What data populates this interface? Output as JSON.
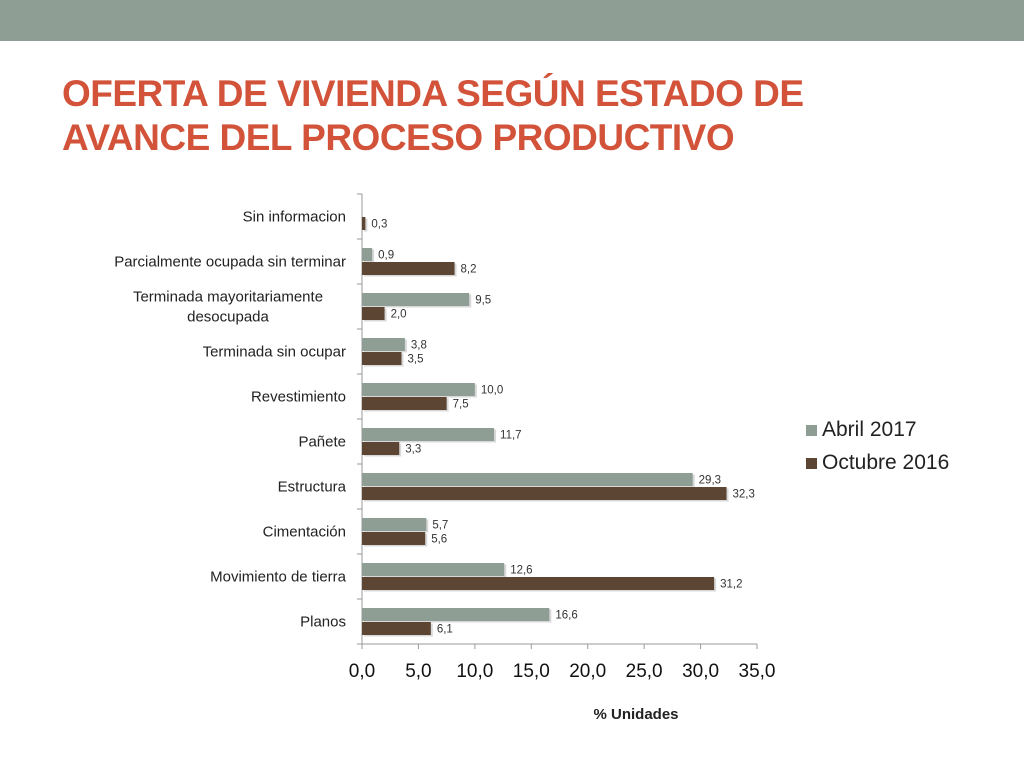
{
  "slide": {
    "title_line1": "OFERTA DE VIVIENDA SEGÚN ESTADO DE",
    "title_line2": "AVANCE DEL PROCESO PRODUCTIVO",
    "band_color": "#8e9e95",
    "title_color": "#d2533a"
  },
  "chart_data": {
    "type": "bar",
    "orientation": "horizontal",
    "title": "",
    "categories": [
      [
        "Sin informacion"
      ],
      [
        "Parcialmente ocupada sin terminar"
      ],
      [
        "Terminada mayoritariamente",
        "desocupada"
      ],
      [
        "Terminada sin ocupar"
      ],
      [
        "Revestimiento"
      ],
      [
        "Pañete"
      ],
      [
        "Estructura"
      ],
      [
        "Cimentación"
      ],
      [
        "Movimiento de tierra"
      ],
      [
        "Planos"
      ]
    ],
    "series": [
      {
        "name": "Abril 2017",
        "color": "#8e9e95",
        "values": [
          null,
          0.9,
          9.5,
          3.8,
          10.0,
          11.7,
          29.3,
          5.7,
          12.6,
          16.6
        ],
        "labels": [
          "",
          "0,9",
          "9,5",
          "3,8",
          "10,0",
          "11,7",
          "29,3",
          "5,7",
          "12,6",
          "16,6"
        ]
      },
      {
        "name": "Octubre 2016",
        "color": "#5c4533",
        "values": [
          0.3,
          8.2,
          2.0,
          3.5,
          7.5,
          3.3,
          32.3,
          5.6,
          31.2,
          6.1
        ],
        "labels": [
          "0,3",
          "8,2",
          "2,0",
          "3,5",
          "7,5",
          "3,3",
          "32,3",
          "5,6",
          "31,2",
          "6,1"
        ]
      }
    ],
    "xlim": [
      0,
      35
    ],
    "xticks": [
      0,
      5,
      10,
      15,
      20,
      25,
      30,
      35
    ],
    "xtick_labels": [
      "0,0",
      "5,0",
      "10,0",
      "15,0",
      "20,0",
      "25,0",
      "30,0",
      "35,0"
    ],
    "xlabel": "% Unidades",
    "ylabel": "",
    "grid": false,
    "legend": {
      "position": "right",
      "entries": [
        "Abril 2017",
        "Octubre 2016"
      ]
    }
  }
}
